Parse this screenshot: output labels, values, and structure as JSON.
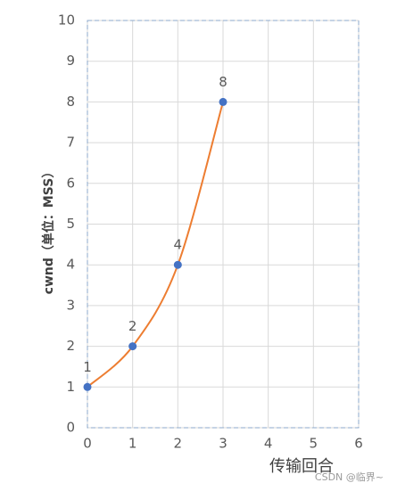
{
  "chart_data": {
    "type": "line",
    "x_label": "传输回合",
    "y_label": "cwnd（单位：MSS）",
    "watermark": "CSDN @临界~",
    "x": [
      0,
      1,
      2,
      3
    ],
    "values": [
      1,
      2,
      4,
      8
    ],
    "line_color": "#ed7d31",
    "marker_color": "#4472c4",
    "xlim": [
      0,
      6
    ],
    "xticks": [
      0,
      1,
      2,
      3,
      4,
      5,
      6
    ],
    "ylim": [
      0,
      10
    ],
    "yticks": [
      0,
      1,
      2,
      3,
      4,
      5,
      6,
      7,
      8,
      9,
      10
    ],
    "grid": true
  }
}
